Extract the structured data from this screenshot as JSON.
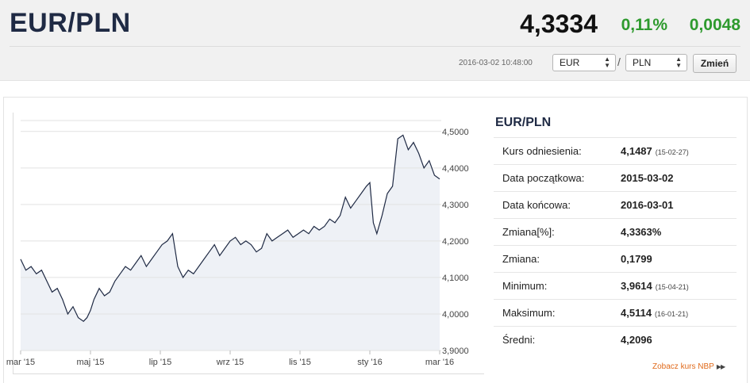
{
  "header": {
    "pair_title": "EUR/PLN",
    "rate": "4,3334",
    "change_percent": "0,11%",
    "change_abs": "0,0048",
    "timestamp": "2016-03-02 10:48:00",
    "base_currency": "EUR",
    "separator": "/",
    "quote_currency": "PLN",
    "change_button": "Zmień",
    "positive_color": "#2e9a2e"
  },
  "stats": {
    "title": "EUR/PLN",
    "rows": [
      {
        "label": "Kurs odniesienia:",
        "value": "4,1487",
        "sub": "(15-02-27)"
      },
      {
        "label": "Data początkowa:",
        "value": "2015-03-02",
        "sub": ""
      },
      {
        "label": "Data końcowa:",
        "value": "2016-03-01",
        "sub": ""
      },
      {
        "label": "Zmiana[%]:",
        "value": "4,3363%",
        "sub": ""
      },
      {
        "label": "Zmiana:",
        "value": "0,1799",
        "sub": ""
      },
      {
        "label": "Minimum:",
        "value": "3,9614",
        "sub": "(15-04-21)"
      },
      {
        "label": "Maksimum:",
        "value": "4,5114",
        "sub": "(16-01-21)"
      },
      {
        "label": "Średni:",
        "value": "4,2096",
        "sub": ""
      }
    ],
    "nbp_link": "Zobacz kurs NBP"
  },
  "chart_data": {
    "type": "area",
    "x_ticks": [
      "mar '15",
      "maj '15",
      "lip '15",
      "wrz '15",
      "lis '15",
      "sty '16",
      "mar '16"
    ],
    "y_ticks": [
      "3,9000",
      "4,0000",
      "4,1000",
      "4,2000",
      "4,3000",
      "4,4000",
      "4,5000"
    ],
    "ylim": [
      3.9,
      4.53
    ],
    "x_range_months": [
      0,
      12
    ],
    "grid": true,
    "line_color": "#1f2a44",
    "fill_color": "#eef1f6",
    "series": [
      {
        "x": [
          0,
          0.15,
          0.3,
          0.45,
          0.6,
          0.75,
          0.9,
          1.05,
          1.2,
          1.35,
          1.5,
          1.65,
          1.8,
          1.9,
          2.0,
          2.1,
          2.25,
          2.4,
          2.55,
          2.7,
          2.85,
          3.0,
          3.15,
          3.3,
          3.45,
          3.6,
          3.75,
          3.9,
          4.05,
          4.2,
          4.35,
          4.5,
          4.65,
          4.8,
          4.95,
          5.1,
          5.25,
          5.4,
          5.55,
          5.7,
          5.85,
          6.0,
          6.15,
          6.3,
          6.45,
          6.6,
          6.75,
          6.9,
          7.05,
          7.2,
          7.35,
          7.5,
          7.65,
          7.8,
          7.95,
          8.1,
          8.25,
          8.4,
          8.55,
          8.7,
          8.85,
          9.0,
          9.15,
          9.3,
          9.45,
          9.6,
          9.75,
          9.9,
          10.0,
          10.1,
          10.2,
          10.35,
          10.5,
          10.65,
          10.8,
          10.95,
          11.1,
          11.25,
          11.4,
          11.55,
          11.7,
          11.85,
          12.0
        ],
        "y": [
          4.15,
          4.12,
          4.13,
          4.11,
          4.12,
          4.09,
          4.06,
          4.07,
          4.04,
          4.0,
          4.02,
          3.99,
          3.98,
          3.99,
          4.01,
          4.04,
          4.07,
          4.05,
          4.06,
          4.09,
          4.11,
          4.13,
          4.12,
          4.14,
          4.16,
          4.13,
          4.15,
          4.17,
          4.19,
          4.2,
          4.22,
          4.13,
          4.1,
          4.12,
          4.11,
          4.13,
          4.15,
          4.17,
          4.19,
          4.16,
          4.18,
          4.2,
          4.21,
          4.19,
          4.2,
          4.19,
          4.17,
          4.18,
          4.22,
          4.2,
          4.21,
          4.22,
          4.23,
          4.21,
          4.22,
          4.23,
          4.22,
          4.24,
          4.23,
          4.24,
          4.26,
          4.25,
          4.27,
          4.32,
          4.29,
          4.31,
          4.33,
          4.35,
          4.36,
          4.25,
          4.22,
          4.27,
          4.33,
          4.35,
          4.48,
          4.49,
          4.45,
          4.47,
          4.44,
          4.4,
          4.42,
          4.38,
          4.37
        ]
      }
    ]
  }
}
